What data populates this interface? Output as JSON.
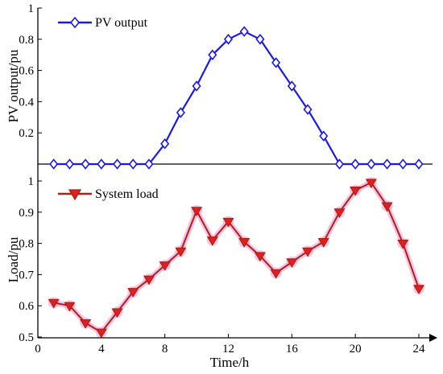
{
  "chart_data": [
    {
      "type": "line",
      "ylabel": "PV output/pu",
      "ylim": [
        0,
        1
      ],
      "yticks": [
        "1",
        "0.8",
        "0.6",
        "0.4",
        "0.2"
      ],
      "xlim": [
        0,
        25
      ],
      "grid": false,
      "legend_position": "top-left",
      "series": [
        {
          "name": "PV output",
          "color": "#1a1ae6",
          "marker": "diamond",
          "x": [
            1,
            2,
            3,
            4,
            5,
            6,
            7,
            8,
            9,
            10,
            11,
            12,
            13,
            14,
            15,
            16,
            17,
            18,
            19,
            20,
            21,
            22,
            23,
            24
          ],
          "values": [
            0,
            0,
            0,
            0,
            0,
            0,
            0,
            0.13,
            0.33,
            0.5,
            0.7,
            0.8,
            0.85,
            0.8,
            0.65,
            0.5,
            0.35,
            0.18,
            0,
            0,
            0,
            0,
            0,
            0
          ]
        }
      ]
    },
    {
      "type": "line",
      "xlabel": "Time/h",
      "ylabel": "Load/pu",
      "ylim": [
        0.5,
        1
      ],
      "yticks": [
        "1",
        "0.9",
        "0.8",
        "0.7",
        "0.6",
        "0.5"
      ],
      "xlim": [
        0,
        25
      ],
      "xticks": [
        "0",
        "4",
        "8",
        "12",
        "16",
        "20",
        "24"
      ],
      "grid": false,
      "legend_position": "top-left",
      "series": [
        {
          "name": "System load",
          "color": "#b02010",
          "marker_fill": "#e02020",
          "highlight": "#f0b0e0",
          "marker": "triangle-down",
          "x": [
            1,
            2,
            3,
            4,
            5,
            6,
            7,
            8,
            9,
            10,
            11,
            12,
            13,
            14,
            15,
            16,
            17,
            18,
            19,
            20,
            21,
            22,
            23,
            24
          ],
          "values": [
            0.61,
            0.6,
            0.545,
            0.515,
            0.58,
            0.645,
            0.685,
            0.73,
            0.775,
            0.905,
            0.81,
            0.87,
            0.805,
            0.76,
            0.705,
            0.74,
            0.775,
            0.805,
            0.9,
            0.97,
            0.995,
            0.92,
            0.8,
            0.655
          ]
        }
      ]
    }
  ]
}
